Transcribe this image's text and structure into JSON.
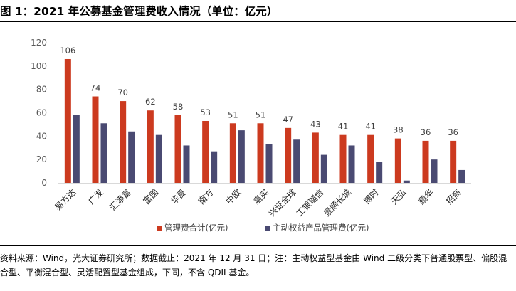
{
  "title": "图 1：2021 年公募基金管理费收入情况（单位：亿元）",
  "source_note": "资料来源：Wind，光大证券研究所；数据截止：2021 年 12 月 31 日；注：主动权益型基金由 Wind 二级分类下普通股票型、偏股混合型、平衡混合型、灵活配置型基金组成，下同，不含 QDII 基金。",
  "colors": {
    "mgmt": "#CC3A1F",
    "active": "#4A4A72"
  },
  "chart_data": {
    "type": "bar",
    "title": "",
    "xlabel": "",
    "ylabel": "",
    "ylim": [
      0,
      120
    ],
    "yticks": [
      0,
      20,
      40,
      60,
      80,
      100,
      120
    ],
    "grid": false,
    "legend_position": "bottom",
    "categories": [
      "易方达",
      "广发",
      "汇添富",
      "富国",
      "华夏",
      "南方",
      "中欧",
      "嘉实",
      "兴证全球",
      "工银瑞信",
      "景顺长城",
      "博时",
      "天弘",
      "鹏华",
      "招商"
    ],
    "series": [
      {
        "name": "管理费合计(亿元)",
        "values": [
          106,
          74,
          70,
          62,
          58,
          53,
          51,
          51,
          47,
          43,
          41,
          41,
          38,
          36,
          36
        ],
        "data_labels": [
          "106",
          "74",
          "70",
          "62",
          "58",
          "53",
          "51",
          "51",
          "47",
          "43",
          "41",
          "41",
          "38",
          "36",
          "36"
        ]
      },
      {
        "name": "主动权益产品管理费(亿元)",
        "values": [
          58,
          51,
          44,
          41,
          32,
          27,
          45,
          33,
          37,
          24,
          32,
          18,
          2,
          20,
          11
        ]
      }
    ]
  }
}
